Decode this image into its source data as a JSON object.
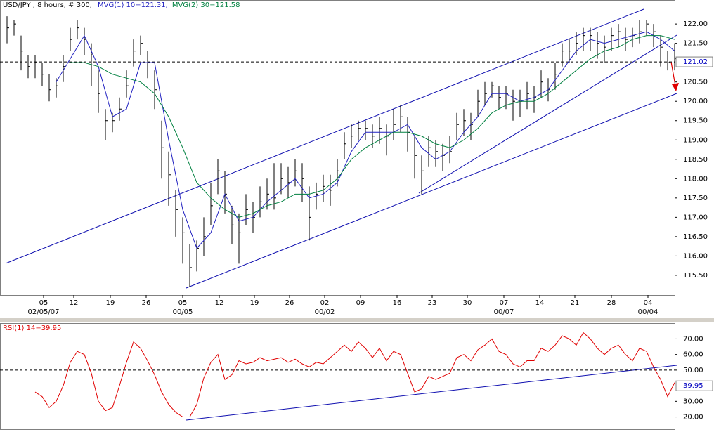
{
  "chart_data": [
    {
      "type": "ohlc",
      "title": "USD/JPY , 8 hours, # 300,",
      "color": "#000000",
      "x": [
        1,
        2,
        3,
        4,
        5,
        6,
        7,
        8,
        9,
        10,
        11,
        12,
        13,
        14,
        15,
        16,
        17,
        18,
        19,
        20,
        21,
        22,
        23,
        24,
        25,
        26,
        27,
        28,
        29,
        30,
        31,
        32,
        33,
        34,
        35,
        36,
        37,
        38,
        39,
        40,
        41,
        42,
        43,
        44,
        45,
        46,
        47,
        48,
        49,
        50,
        51,
        52,
        53,
        54,
        55,
        56,
        57,
        58,
        59,
        60,
        61,
        62,
        63,
        64,
        65,
        66,
        67,
        68,
        69,
        70,
        71,
        72,
        73,
        74,
        75,
        76,
        77,
        78,
        79,
        80,
        81,
        82,
        83,
        84,
        85,
        86,
        87,
        88,
        89,
        90,
        91,
        92,
        93,
        94,
        95,
        96
      ],
      "high": [
        122.2,
        122.1,
        121.7,
        121.2,
        121.2,
        121.0,
        120.7,
        120.6,
        121.2,
        121.9,
        122.1,
        121.9,
        121.5,
        120.8,
        119.8,
        119.7,
        120.1,
        120.8,
        121.6,
        121.7,
        121.3,
        120.8,
        119.5,
        118.7,
        117.7,
        117.0,
        116.3,
        116.4,
        117.0,
        117.9,
        118.5,
        118.2,
        117.3,
        117.1,
        117.6,
        117.4,
        117.8,
        118.0,
        118.4,
        118.4,
        118.3,
        118.5,
        118.4,
        117.8,
        117.9,
        118.1,
        118.1,
        118.5,
        119.2,
        119.4,
        119.5,
        119.5,
        119.4,
        119.6,
        119.4,
        119.8,
        119.9,
        119.6,
        119.1,
        118.6,
        119.1,
        119.0,
        118.9,
        119.1,
        119.7,
        119.8,
        119.7,
        120.3,
        120.5,
        120.5,
        120.4,
        120.4,
        120.3,
        120.3,
        120.5,
        120.4,
        120.8,
        120.6,
        121.0,
        121.5,
        121.6,
        121.8,
        121.9,
        121.9,
        121.8,
        121.7,
        121.9,
        122.0,
        121.9,
        121.9,
        122.1,
        122.1,
        122.0,
        121.7,
        121.3,
        121.5
      ],
      "low": [
        121.5,
        121.7,
        120.8,
        120.6,
        120.6,
        120.4,
        120.0,
        120.1,
        120.5,
        121.3,
        121.6,
        121.2,
        120.4,
        119.7,
        119.0,
        119.2,
        119.5,
        120.1,
        120.9,
        121.2,
        120.6,
        119.8,
        118.0,
        117.3,
        116.5,
        115.8,
        115.2,
        115.6,
        116.0,
        116.8,
        117.6,
        117.1,
        116.3,
        115.8,
        116.8,
        116.6,
        117.0,
        117.2,
        117.2,
        117.6,
        117.5,
        117.8,
        117.4,
        116.4,
        117.2,
        117.4,
        117.3,
        117.8,
        118.5,
        118.8,
        119.0,
        119.0,
        118.8,
        118.9,
        118.6,
        119.0,
        119.2,
        118.7,
        118.0,
        117.6,
        118.3,
        118.3,
        118.2,
        118.4,
        119.0,
        119.1,
        119.0,
        119.6,
        119.9,
        120.1,
        119.8,
        119.8,
        119.5,
        119.6,
        119.8,
        119.7,
        120.1,
        120.0,
        120.3,
        120.9,
        121.0,
        121.2,
        121.3,
        121.3,
        121.1,
        121.0,
        121.3,
        121.4,
        121.3,
        121.4,
        121.5,
        121.7,
        121.4,
        120.9,
        120.8,
        120.8
      ],
      "close": [
        121.9,
        122.0,
        121.3,
        120.9,
        121.0,
        120.7,
        120.3,
        120.4,
        120.9,
        121.6,
        121.9,
        121.6,
        121.2,
        120.2,
        119.5,
        119.5,
        119.8,
        120.4,
        121.3,
        121.5,
        121.0,
        120.3,
        118.8,
        118.1,
        117.2,
        116.6,
        115.7,
        116.2,
        116.5,
        117.3,
        118.2,
        117.6,
        116.8,
        116.6,
        117.2,
        117.0,
        117.4,
        117.6,
        117.5,
        118.0,
        117.9,
        118.2,
        118.0,
        117.0,
        117.6,
        117.8,
        117.7,
        118.2,
        118.9,
        119.1,
        119.3,
        119.3,
        119.1,
        119.3,
        119.1,
        119.4,
        119.6,
        119.2,
        118.6,
        118.2,
        118.8,
        118.7,
        118.6,
        118.7,
        119.4,
        119.5,
        119.4,
        120.0,
        120.2,
        120.4,
        120.1,
        120.2,
        120.0,
        120.0,
        120.2,
        120.1,
        120.5,
        120.3,
        120.7,
        121.3,
        121.3,
        121.5,
        121.7,
        121.7,
        121.5,
        121.4,
        121.7,
        121.8,
        121.6,
        121.7,
        121.8,
        122.0,
        121.8,
        121.4,
        121.0,
        121.1
      ],
      "overlays": [
        {
          "name": "MVG(1) 10=121.31,",
          "color": "#2020c0",
          "x": [
            8,
            10,
            12,
            14,
            16,
            18,
            20,
            22,
            24,
            26,
            28,
            30,
            32,
            34,
            36,
            38,
            40,
            42,
            44,
            46,
            48,
            50,
            52,
            54,
            56,
            58,
            60,
            62,
            64,
            66,
            68,
            70,
            72,
            74,
            76,
            78,
            80,
            82,
            84,
            86,
            88,
            90,
            92,
            94,
            96
          ],
          "values": [
            120.5,
            121.1,
            121.7,
            120.9,
            119.6,
            119.8,
            121.0,
            121.0,
            119.0,
            117.2,
            116.2,
            116.6,
            117.6,
            116.9,
            117.0,
            117.4,
            117.7,
            118.0,
            117.5,
            117.6,
            117.9,
            118.7,
            119.2,
            119.2,
            119.2,
            119.4,
            118.8,
            118.5,
            118.7,
            119.2,
            119.6,
            120.2,
            120.2,
            120.0,
            120.1,
            120.3,
            120.8,
            121.3,
            121.6,
            121.5,
            121.6,
            121.7,
            121.8,
            121.6,
            121.3
          ]
        },
        {
          "name": "MVG(2) 30=121.58",
          "color": "#008040",
          "x": [
            10,
            12,
            14,
            16,
            18,
            20,
            22,
            24,
            26,
            28,
            30,
            32,
            34,
            36,
            38,
            40,
            42,
            44,
            46,
            48,
            50,
            52,
            54,
            56,
            58,
            60,
            62,
            64,
            66,
            68,
            70,
            72,
            74,
            76,
            78,
            80,
            82,
            84,
            86,
            88,
            90,
            92,
            94,
            96
          ],
          "values": [
            121.0,
            121.0,
            120.9,
            120.7,
            120.6,
            120.5,
            120.2,
            119.6,
            118.8,
            117.9,
            117.5,
            117.2,
            117.0,
            117.1,
            117.3,
            117.4,
            117.6,
            117.6,
            117.7,
            118.0,
            118.5,
            118.8,
            119.0,
            119.2,
            119.2,
            119.1,
            118.9,
            118.8,
            119.0,
            119.3,
            119.7,
            119.9,
            120.0,
            120.0,
            120.2,
            120.5,
            120.8,
            121.1,
            121.3,
            121.4,
            121.6,
            121.7,
            121.7,
            121.6
          ]
        }
      ],
      "ref_line": 121.02,
      "xlim": [
        0,
        96
      ],
      "ylim": [
        114.99,
        122.62
      ],
      "yticks": [
        {
          "value": 115.5,
          "label": "115.50"
        },
        {
          "value": 116,
          "label": "116.00"
        },
        {
          "value": 116.5,
          "label": "116.50"
        },
        {
          "value": 117,
          "label": "117.00"
        },
        {
          "value": 117.5,
          "label": "117.50"
        },
        {
          "value": 118,
          "label": "118.00"
        },
        {
          "value": 118.5,
          "label": "118.50"
        },
        {
          "value": 119,
          "label": "119.00"
        },
        {
          "value": 119.5,
          "label": "119.50"
        },
        {
          "value": 120,
          "label": "120.00"
        },
        {
          "value": 120.5,
          "label": "120.50"
        },
        {
          "value": 121.5,
          "label": "121.50"
        },
        {
          "value": 122,
          "label": "122.00"
        }
      ],
      "xticks": [
        {
          "value": 6.2,
          "label": "05"
        },
        {
          "value": 10.5,
          "label": "12"
        },
        {
          "value": 15.7,
          "label": "19"
        },
        {
          "value": 20.8,
          "label": "26"
        },
        {
          "value": 26,
          "label": "05"
        },
        {
          "value": 31.2,
          "label": "12"
        },
        {
          "value": 36.2,
          "label": "19"
        },
        {
          "value": 41.2,
          "label": "26"
        },
        {
          "value": 46.2,
          "label": "02"
        },
        {
          "value": 51.3,
          "label": "09"
        },
        {
          "value": 56.5,
          "label": "16"
        },
        {
          "value": 61.5,
          "label": "23"
        },
        {
          "value": 66.5,
          "label": "30"
        },
        {
          "value": 71.7,
          "label": "07"
        },
        {
          "value": 76.8,
          "label": "14"
        },
        {
          "value": 81.8,
          "label": "21"
        },
        {
          "value": 87,
          "label": "28"
        },
        {
          "value": 92.2,
          "label": "04"
        }
      ],
      "xticks2": [
        {
          "value": 6.2,
          "label": "02/05/07"
        },
        {
          "value": 26,
          "label": "00/05"
        },
        {
          "value": 46.2,
          "label": "00/02"
        },
        {
          "value": 71.7,
          "label": "00/07"
        },
        {
          "value": 92.2,
          "label": "00/04"
        }
      ]
    },
    {
      "type": "line",
      "series": [
        {
          "name": "RSI(1) 14=39.95",
          "color": "#e00000",
          "x": [
            5,
            6,
            7,
            8,
            9,
            10,
            11,
            12,
            13,
            14,
            15,
            16,
            17,
            18,
            19,
            20,
            21,
            22,
            23,
            24,
            25,
            26,
            27,
            28,
            29,
            30,
            31,
            32,
            33,
            34,
            35,
            36,
            37,
            38,
            39,
            40,
            41,
            42,
            43,
            44,
            45,
            46,
            47,
            48,
            49,
            50,
            51,
            52,
            53,
            54,
            55,
            56,
            57,
            58,
            59,
            60,
            61,
            62,
            63,
            64,
            65,
            66,
            67,
            68,
            69,
            70,
            71,
            72,
            73,
            74,
            75,
            76,
            77,
            78,
            79,
            80,
            81,
            82,
            83,
            84,
            85,
            86,
            87,
            88,
            89,
            90,
            91,
            92,
            93,
            94,
            95,
            96
          ],
          "values": [
            36,
            33,
            26,
            30,
            40,
            55,
            62,
            60,
            48,
            30,
            24,
            26,
            40,
            55,
            68,
            64,
            56,
            47,
            36,
            28,
            23,
            20,
            20,
            28,
            45,
            55,
            60,
            44,
            47,
            56,
            54,
            55,
            58,
            56,
            57,
            58,
            55,
            57,
            54,
            52,
            55,
            54,
            58,
            62,
            66,
            62,
            68,
            64,
            58,
            64,
            56,
            62,
            60,
            48,
            36,
            38,
            46,
            44,
            46,
            48,
            58,
            60,
            56,
            63,
            66,
            70,
            62,
            60,
            54,
            52,
            56,
            56,
            64,
            62,
            66,
            72,
            70,
            66,
            74,
            70,
            64,
            60,
            64,
            66,
            60,
            56,
            64,
            62,
            52,
            44,
            33,
            42
          ]
        }
      ],
      "ref_line": 50,
      "last": 39.95,
      "xlim": [
        0,
        96
      ],
      "ylim": [
        11.7,
        80.1
      ],
      "yticks": [
        {
          "value": 20,
          "label": "20.00"
        },
        {
          "value": 30,
          "label": "30.00"
        },
        {
          "value": 50,
          "label": "50.00"
        },
        {
          "value": 60,
          "label": "60.00"
        },
        {
          "value": 70,
          "label": "70.00"
        }
      ]
    }
  ]
}
